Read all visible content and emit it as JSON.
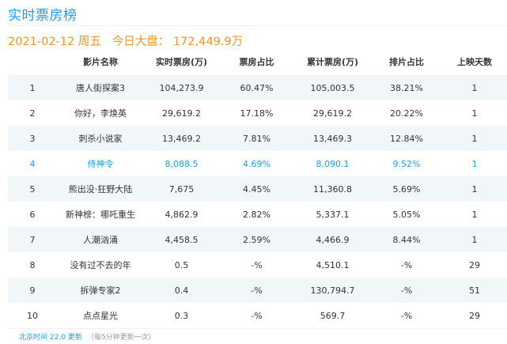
{
  "header": {
    "title": "实时票房榜",
    "date": "2021-02-12",
    "weekday": "周五",
    "total_label": "今日大盘：",
    "total_value": "172,449.9万"
  },
  "table": {
    "columns": [
      "",
      "影片名称",
      "实时票房(万)",
      "票房占比",
      "累计票房(万)",
      "排片占比",
      "上映天数"
    ],
    "rows": [
      {
        "rank": "1",
        "name": "唐人街探案3",
        "realtime": "104,273.9",
        "share": "60.47%",
        "total": "105,003.5",
        "screen": "38.21%",
        "days": "1"
      },
      {
        "rank": "2",
        "name": "你好，李焕英",
        "realtime": "29,619.2",
        "share": "17.18%",
        "total": "29,619.2",
        "screen": "20.22%",
        "days": "1"
      },
      {
        "rank": "3",
        "name": "刺杀小说家",
        "realtime": "13,469.2",
        "share": "7.81%",
        "total": "13,469.3",
        "screen": "12.84%",
        "days": "1"
      },
      {
        "rank": "4",
        "name": "侍神令",
        "realtime": "8,088.5",
        "share": "4.69%",
        "total": "8,090.1",
        "screen": "9.52%",
        "days": "1"
      },
      {
        "rank": "5",
        "name": "熊出没·狂野大陆",
        "realtime": "7,675",
        "share": "4.45%",
        "total": "11,360.8",
        "screen": "5.69%",
        "days": "1"
      },
      {
        "rank": "6",
        "name": "新神榜：哪吒重生",
        "realtime": "4,862.9",
        "share": "2.82%",
        "total": "5,337.1",
        "screen": "5.05%",
        "days": "1"
      },
      {
        "rank": "7",
        "name": "人潮汹涌",
        "realtime": "4,458.5",
        "share": "2.59%",
        "total": "4,466.9",
        "screen": "8.44%",
        "days": "1"
      },
      {
        "rank": "8",
        "name": "没有过不去的年",
        "realtime": "0.5",
        "share": "-%",
        "total": "4,510.1",
        "screen": "-%",
        "days": "29"
      },
      {
        "rank": "9",
        "name": "拆弹专家2",
        "realtime": "0.4",
        "share": "-%",
        "total": "130,794.7",
        "screen": "-%",
        "days": "51"
      },
      {
        "rank": "10",
        "name": "点点星光",
        "realtime": "0.3",
        "share": "-%",
        "total": "569.7",
        "screen": "-%",
        "days": "29"
      }
    ]
  },
  "footer": {
    "update_text": "北京时间 22:0 更新",
    "note": "（每5分钟更新一次）"
  },
  "colors": {
    "accent_blue": "#1a9ce8",
    "accent_orange": "#f7931e",
    "stripe": "#f1f7f8"
  }
}
